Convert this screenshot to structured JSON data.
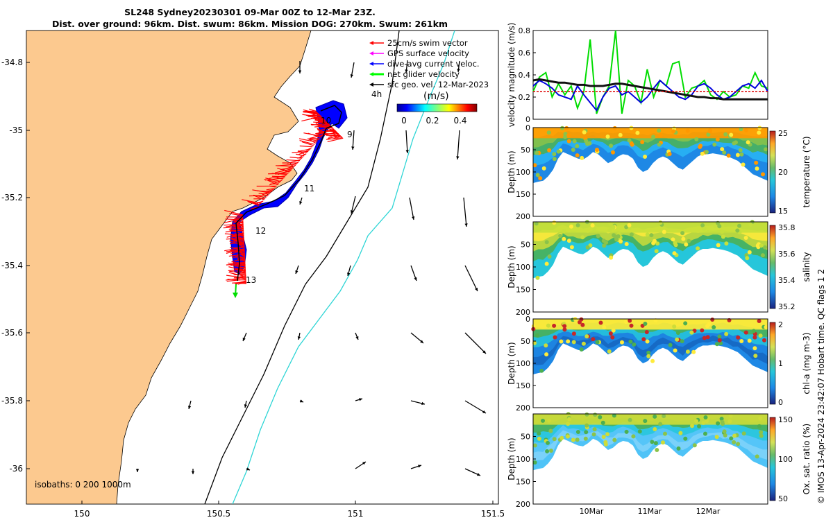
{
  "header": {
    "title": "SL248 Sydney20230301 09-Mar 00Z to 12-Mar 23Z.",
    "subtitle": "Dist. over ground: 96km. Dist. swum: 86km. Mission DOG: 270km. Swum: 261km"
  },
  "credit": "© IMOS 13-Apr-2024 23:42:07 Hobart time. QC flags 1  2",
  "map": {
    "legend": [
      {
        "label": "25cm/s swim vector",
        "color": "#ff0000"
      },
      {
        "label": "GPS surface velocity",
        "color": "#ff00ff"
      },
      {
        "label": "dive-avg current veloc.",
        "color": "#0000ff"
      },
      {
        "label": "net glider velocity",
        "color": "#00ff00"
      },
      {
        "label": "sfc geo. vel. 12-Mar-2023",
        "color": "#000000"
      }
    ],
    "colorbar_tag": "4h",
    "colorbar_title": "(m/s)",
    "colorbar_ticks": [
      "0",
      "0.2",
      "0.4"
    ],
    "isobaths": "isobaths: 0   200 1000m",
    "day_markers": [
      "10",
      "9",
      "11",
      "12",
      "13"
    ]
  },
  "chart_data": [
    {
      "type": "map",
      "x_ticks": [
        "150",
        "150.5",
        "151",
        "151.5"
      ],
      "y_ticks": [
        "-34.8",
        "-35",
        "-35.2",
        "-35.4",
        "-35.6",
        "-35.8",
        "-36"
      ],
      "xlim": [
        149.8,
        151.5
      ],
      "ylim": [
        -36.1,
        -34.7
      ],
      "track": [
        {
          "lon": 150.62,
          "lat": -35.45,
          "label": "13"
        },
        {
          "lon": 150.6,
          "lat": -35.3,
          "label": "12"
        },
        {
          "lon": 150.82,
          "lat": -35.2,
          "label": "11"
        },
        {
          "lon": 150.88,
          "lat": -34.95,
          "label": "10"
        },
        {
          "lon": 150.96,
          "lat": -35.0,
          "label": "9"
        }
      ]
    },
    {
      "type": "line",
      "ylabel": "velocity magnitude (m/s)",
      "ylim": [
        0,
        0.8
      ],
      "y_ticks": [
        "0",
        "0.2",
        "0.4",
        "0.6",
        "0.8"
      ],
      "series": [
        {
          "color": "#00dd00",
          "values": [
            0.25,
            0.38,
            0.42,
            0.2,
            0.32,
            0.22,
            0.3,
            0.1,
            0.25,
            0.72,
            0.05,
            0.2,
            0.3,
            0.8,
            0.05,
            0.35,
            0.3,
            0.15,
            0.45,
            0.2,
            0.35,
            0.3,
            0.5,
            0.52,
            0.2,
            0.28,
            0.3,
            0.35,
            0.22,
            0.18,
            0.25,
            0.2,
            0.22,
            0.3,
            0.28,
            0.42,
            0.3,
            0.28
          ]
        },
        {
          "color": "#0000dd",
          "values": [
            0.3,
            0.35,
            0.32,
            0.28,
            0.22,
            0.2,
            0.18,
            0.3,
            0.22,
            0.15,
            0.08,
            0.2,
            0.28,
            0.3,
            0.22,
            0.25,
            0.2,
            0.15,
            0.2,
            0.28,
            0.35,
            0.3,
            0.25,
            0.2,
            0.18,
            0.22,
            0.3,
            0.32,
            0.28,
            0.22,
            0.18,
            0.2,
            0.25,
            0.3,
            0.32,
            0.28,
            0.35,
            0.25
          ]
        },
        {
          "color": "#111111",
          "values": [
            0.35,
            0.36,
            0.35,
            0.34,
            0.33,
            0.33,
            0.32,
            0.31,
            0.31,
            0.3,
            0.3,
            0.3,
            0.31,
            0.32,
            0.32,
            0.31,
            0.3,
            0.29,
            0.28,
            0.27,
            0.26,
            0.25,
            0.24,
            0.23,
            0.22,
            0.21,
            0.2,
            0.2,
            0.19,
            0.19,
            0.18,
            0.18,
            0.18,
            0.18,
            0.18,
            0.18,
            0.18,
            0.18
          ]
        },
        {
          "color": "#dd0000",
          "values": [
            0.25,
            0.25,
            0.25,
            0.25,
            0.25,
            0.25,
            0.25,
            0.25,
            0.25,
            0.25,
            0.25,
            0.25,
            0.25,
            0.25,
            0.25,
            0.25,
            0.25,
            0.25,
            0.25,
            0.25,
            0.25,
            0.25,
            0.25,
            0.25,
            0.25,
            0.25,
            0.25,
            0.25,
            0.25,
            0.25,
            0.25,
            0.25,
            0.25,
            0.25,
            0.25,
            0.25,
            0.25,
            0.25
          ]
        }
      ]
    },
    {
      "type": "heatmap",
      "ylabel": "Depth (m)",
      "clabel": "temperature (°C)",
      "y_ticks": [
        "0",
        "50",
        "100",
        "150",
        "200"
      ],
      "c_ticks": [
        "25",
        "20",
        "15"
      ]
    },
    {
      "type": "heatmap",
      "ylabel": "Depth (m)",
      "clabel": "salinity",
      "y_ticks": [
        "50",
        "100",
        "150",
        "200"
      ],
      "c_ticks": [
        "35.8",
        "35.6",
        "35.4",
        "35.2"
      ]
    },
    {
      "type": "heatmap",
      "ylabel": "Depth (m)",
      "clabel": "chl-a (mg m-3)",
      "y_ticks": [
        "0",
        "50",
        "100",
        "150",
        "200"
      ],
      "c_ticks": [
        "2",
        "1",
        "0"
      ]
    },
    {
      "type": "heatmap",
      "ylabel": "Depth (m)",
      "clabel": "Ox. sat. ratio (%)",
      "y_ticks": [
        "50",
        "100",
        "150",
        "200"
      ],
      "c_ticks": [
        "150",
        "100",
        "50"
      ],
      "x_ticks": [
        "10Mar",
        "11Mar",
        "12Mar"
      ]
    }
  ]
}
